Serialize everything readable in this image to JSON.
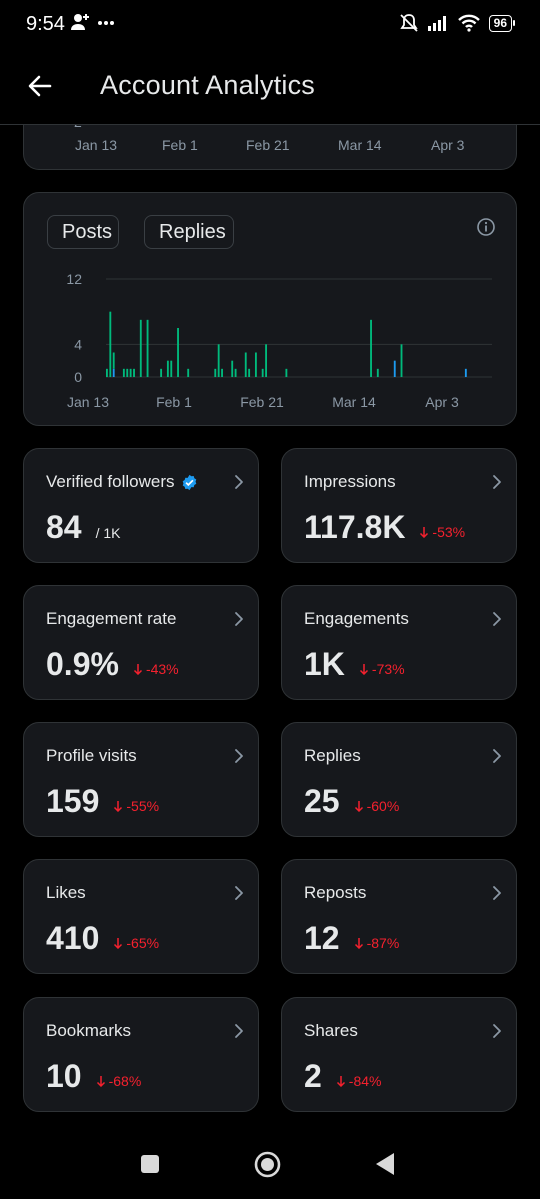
{
  "status_bar": {
    "time": "9:54",
    "battery": "96"
  },
  "header": {
    "title": "Account Analytics"
  },
  "partial_chart": {
    "x_ticks": [
      "Jan 13",
      "Feb 1",
      "Feb 21",
      "Mar 14",
      "Apr 3"
    ],
    "visible_y_tick": "2"
  },
  "activity_chart": {
    "legend": [
      {
        "label": "Posts",
        "color": "#1d9bf0"
      },
      {
        "label": "Replies",
        "color": "#00ba7c"
      }
    ]
  },
  "chart_data": {
    "type": "bar",
    "x_ticks": [
      "Jan 13",
      "Feb 1",
      "Feb 21",
      "Mar 14",
      "Apr 3"
    ],
    "y_ticks": [
      "12",
      "4",
      "0"
    ],
    "ylim": [
      0,
      12
    ],
    "grid": true,
    "series": [
      {
        "name": "Posts",
        "values": [
          0,
          0,
          1,
          0,
          0,
          0,
          0,
          0,
          0,
          0,
          0,
          0,
          0,
          0,
          0,
          0,
          0,
          0,
          0,
          0,
          0,
          0,
          0,
          0,
          0,
          0,
          0,
          0,
          0,
          0,
          0,
          0,
          0,
          0,
          0,
          0,
          0,
          0,
          0,
          0,
          0,
          0,
          0,
          0,
          0,
          0,
          0,
          0,
          0,
          0,
          0,
          0,
          0,
          0,
          0,
          0,
          0,
          0,
          0,
          0,
          0,
          0,
          0,
          0,
          0,
          0,
          0,
          0,
          0,
          0,
          0,
          0,
          0,
          0,
          0,
          0,
          0,
          0,
          0,
          0,
          0,
          0,
          0,
          0,
          0,
          2,
          0,
          0,
          0,
          0,
          0,
          0,
          0,
          0,
          0,
          0,
          0,
          0,
          0,
          0,
          0,
          0,
          0,
          0,
          0,
          0,
          1,
          0,
          0,
          0,
          0,
          0,
          0,
          0
        ]
      },
      {
        "name": "Replies",
        "values": [
          1,
          8,
          2,
          0,
          0,
          1,
          1,
          1,
          1,
          0,
          7,
          0,
          7,
          0,
          0,
          0,
          1,
          0,
          2,
          2,
          0,
          6,
          0,
          0,
          1,
          0,
          0,
          0,
          0,
          0,
          0,
          0,
          1,
          4,
          1,
          0,
          0,
          2,
          1,
          0,
          0,
          3,
          1,
          0,
          3,
          0,
          1,
          4,
          0,
          0,
          0,
          0,
          0,
          1,
          0,
          0,
          0,
          0,
          0,
          0,
          0,
          0,
          0,
          0,
          0,
          0,
          0,
          0,
          0,
          0,
          0,
          0,
          0,
          0,
          0,
          0,
          0,
          0,
          7,
          0,
          1,
          0,
          0,
          0,
          0,
          0,
          0,
          4,
          0,
          0,
          0,
          0,
          0,
          0,
          0,
          0,
          0,
          0,
          0,
          0,
          0,
          0,
          0,
          0,
          0,
          0,
          0,
          0,
          0,
          0,
          0,
          0,
          0,
          0
        ]
      }
    ]
  },
  "stats": [
    {
      "label": "Verified followers",
      "value": "84",
      "suffix": "/ 1K",
      "change": ""
    },
    {
      "label": "Impressions",
      "value": "117.8K",
      "suffix": "",
      "change": "-53%"
    },
    {
      "label": "Engagement rate",
      "value": "0.9%",
      "suffix": "",
      "change": "-43%"
    },
    {
      "label": "Engagements",
      "value": "1K",
      "suffix": "",
      "change": "-73%"
    },
    {
      "label": "Profile visits",
      "value": "159",
      "suffix": "",
      "change": "-55%"
    },
    {
      "label": "Replies",
      "value": "25",
      "suffix": "",
      "change": "-60%"
    },
    {
      "label": "Likes",
      "value": "410",
      "suffix": "",
      "change": "-65%"
    },
    {
      "label": "Reposts",
      "value": "12",
      "suffix": "",
      "change": "-87%"
    },
    {
      "label": "Bookmarks",
      "value": "10",
      "suffix": "",
      "change": "-68%"
    },
    {
      "label": "Shares",
      "value": "2",
      "suffix": "",
      "change": "-84%"
    }
  ],
  "colors": {
    "background": "#000000",
    "card": "#16181c",
    "border": "#2f3336",
    "negative": "#f4212e",
    "verified": "#1d9bf0"
  }
}
